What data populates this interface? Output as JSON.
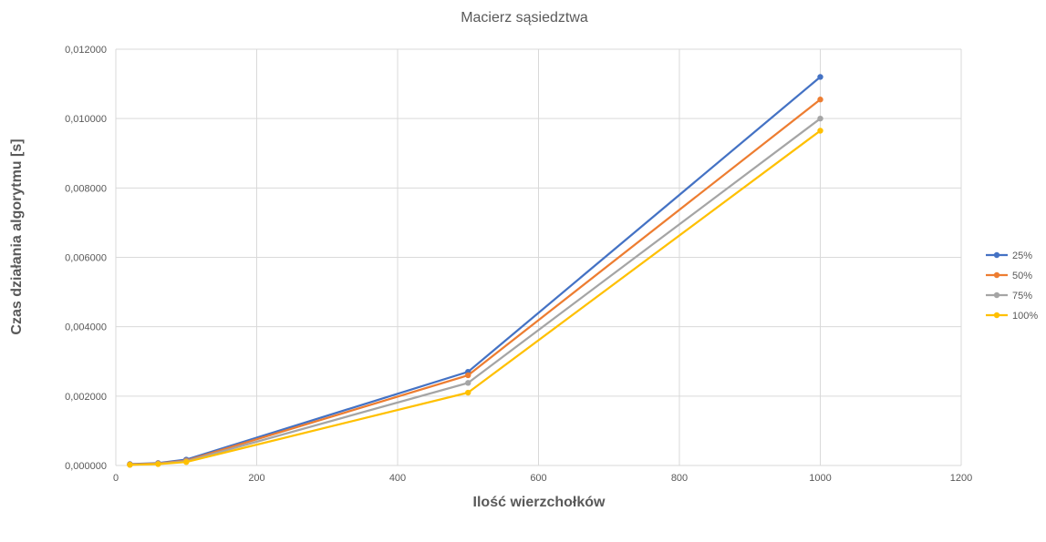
{
  "chart_data": {
    "type": "line",
    "title": "Macierz sąsiedztwa",
    "xlabel": "Ilość wierzchołków",
    "ylabel": "Czas działania algorytmu [s]",
    "xlim": [
      0,
      1200
    ],
    "ylim": [
      0,
      0.012
    ],
    "x_ticks": [
      "0",
      "200",
      "400",
      "600",
      "800",
      "1000",
      "1200"
    ],
    "y_ticks": [
      "0,000000",
      "0,002000",
      "0,004000",
      "0,006000",
      "0,008000",
      "0,010000",
      "0,012000"
    ],
    "grid": true,
    "legend_position": "right",
    "x": [
      20,
      60,
      100,
      500,
      1000
    ],
    "series": [
      {
        "name": "25%",
        "color": "#4472c4",
        "values": [
          4e-05,
          7e-05,
          0.00017,
          0.0027,
          0.0112
        ]
      },
      {
        "name": "50%",
        "color": "#ed7d31",
        "values": [
          3e-05,
          6e-05,
          0.00014,
          0.0026,
          0.01055
        ]
      },
      {
        "name": "75%",
        "color": "#a5a5a5",
        "values": [
          2e-05,
          5e-05,
          0.00012,
          0.00238,
          0.01
        ]
      },
      {
        "name": "100%",
        "color": "#ffc000",
        "values": [
          2e-05,
          4e-05,
          0.0001,
          0.0021,
          0.00965
        ]
      }
    ]
  }
}
